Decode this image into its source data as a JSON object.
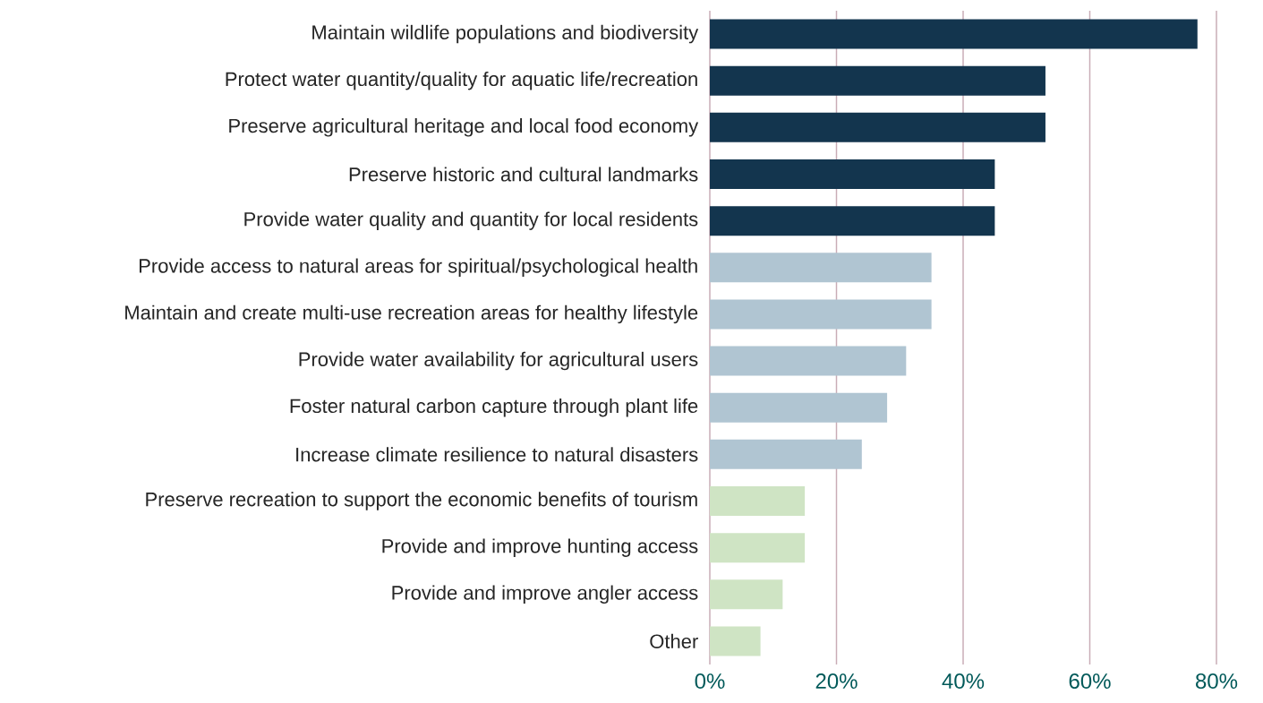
{
  "chart_data": {
    "type": "bar",
    "orientation": "horizontal",
    "categories": [
      "Maintain wildlife populations and biodiversity",
      "Protect water quantity/quality for aquatic life/recreation",
      "Preserve agricultural heritage and local food economy",
      "Preserve historic and cultural landmarks",
      "Provide water quality and quantity for local residents",
      "Provide access to natural areas for spiritual/psychological health",
      "Maintain and create multi-use recreation areas for healthy lifestyle",
      "Provide water availability for agricultural users",
      "Foster natural carbon capture through plant life",
      "Increase climate resilience to natural disasters",
      "Preserve recreation to support the economic benefits of tourism",
      "Provide and improve hunting access",
      "Provide and improve angler access",
      "Other"
    ],
    "values": [
      77,
      53,
      53,
      45,
      45,
      35,
      35,
      31,
      28,
      24,
      15,
      15,
      11.5,
      8
    ],
    "colors": [
      "#13354e",
      "#13354e",
      "#13354e",
      "#13354e",
      "#13354e",
      "#b0c5d2",
      "#b0c5d2",
      "#b0c5d2",
      "#b0c5d2",
      "#b0c5d2",
      "#cfe4c4",
      "#cfe4c4",
      "#cfe4c4",
      "#cfe4c4"
    ],
    "xlim": [
      0,
      80
    ],
    "xticks": [
      {
        "value": 0,
        "label": "0%"
      },
      {
        "value": 20,
        "label": "20%"
      },
      {
        "value": 40,
        "label": "40%"
      },
      {
        "value": 60,
        "label": "60%"
      },
      {
        "value": 80,
        "label": "80%"
      }
    ],
    "grid": "x"
  }
}
